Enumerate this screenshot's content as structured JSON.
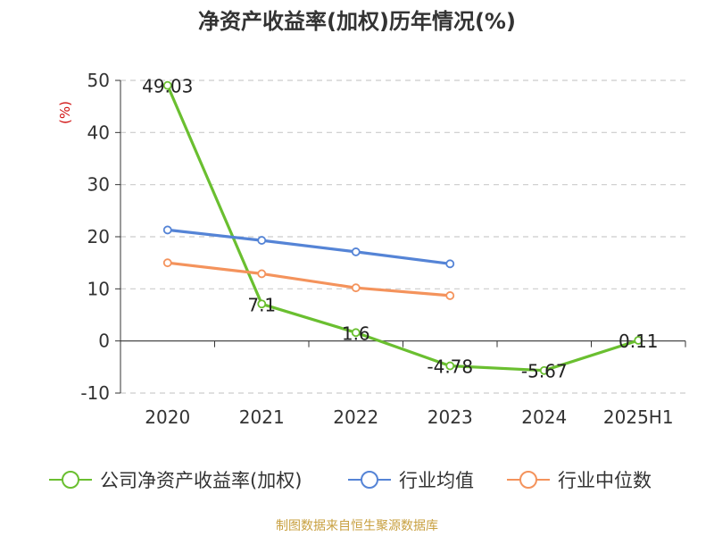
{
  "title": "净资产收益率(加权)历年情况(%)",
  "source": "制图数据来自恒生聚源数据库",
  "chart_data": {
    "type": "line",
    "ylabel": "(%)",
    "ylim": [
      -10,
      50
    ],
    "yticks": [
      50,
      40,
      30,
      20,
      10,
      0,
      -10
    ],
    "grid": true,
    "legend_position": "bottom",
    "categories": [
      "2020",
      "2021",
      "2022",
      "2023",
      "2024",
      "2025H1"
    ],
    "series": [
      {
        "name": "公司净资产收益率(加权)",
        "color": "#6abf30",
        "values": [
          49.03,
          7.1,
          1.6,
          -4.78,
          -5.67,
          0.11
        ],
        "labels": [
          "49.03",
          "7.1",
          "1.6",
          "-4.78",
          "-5.67",
          "0.11"
        ]
      },
      {
        "name": "行业均值",
        "color": "#5584d6",
        "values": [
          21.3,
          19.3,
          17.1,
          14.8,
          null,
          null
        ]
      },
      {
        "name": "行业中位数",
        "color": "#f4935c",
        "values": [
          15.0,
          12.9,
          10.2,
          8.7,
          null,
          null
        ]
      }
    ]
  }
}
